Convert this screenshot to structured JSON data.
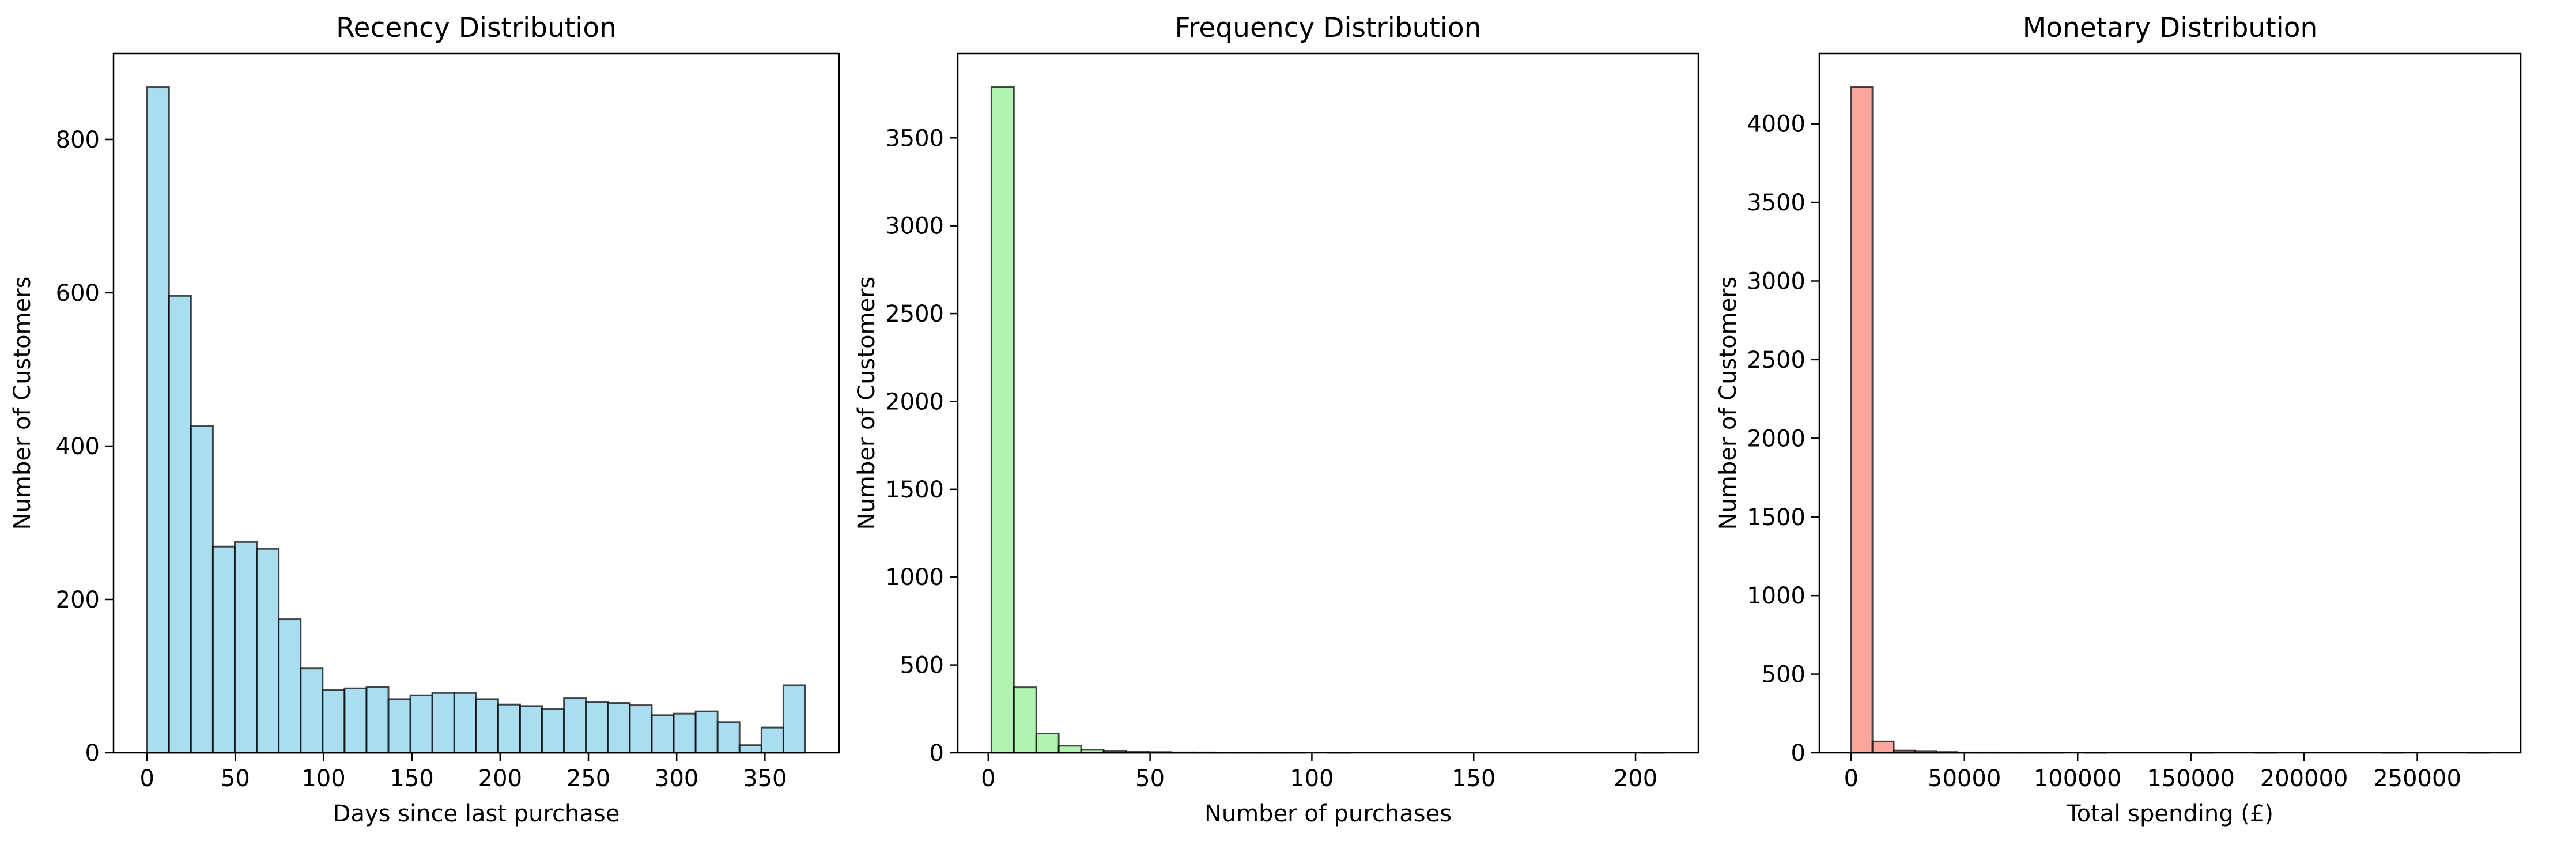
{
  "chart_data": [
    {
      "type": "bar",
      "title": "Recency Distribution",
      "xlabel": "Days since last purchase",
      "ylabel": "Number of Customers",
      "color": "#87ceeb",
      "edge_color": "#000000",
      "bin_start": 0,
      "bin_width": 12.43,
      "values": [
        868,
        596,
        426,
        269,
        275,
        266,
        174,
        110,
        82,
        84,
        86,
        70,
        75,
        78,
        78,
        70,
        63,
        61,
        57,
        71,
        66,
        65,
        62,
        49,
        51,
        54,
        40,
        10,
        33,
        88
      ],
      "xlim": [
        -19,
        392
      ],
      "ylim": [
        0,
        912
      ],
      "xticks": [
        0,
        50,
        100,
        150,
        200,
        250,
        300,
        350
      ],
      "xtick_labels": [
        "0",
        "50",
        "100",
        "150",
        "200",
        "250",
        "300",
        "350"
      ],
      "yticks": [
        0,
        200,
        400,
        600,
        800
      ],
      "ytick_labels": [
        "0",
        "200",
        "400",
        "600",
        "800"
      ]
    },
    {
      "type": "bar",
      "title": "Frequency Distribution",
      "xlabel": "Number of purchases",
      "ylabel": "Number of Customers",
      "color": "#90ee90",
      "edge_color": "#000000",
      "bin_start": 1,
      "bin_width": 6.93,
      "values": [
        3790,
        372,
        110,
        40,
        17,
        9,
        5,
        4,
        2,
        2,
        1,
        1,
        1,
        1,
        0,
        1,
        0,
        0,
        0,
        0,
        0,
        0,
        0,
        0,
        0,
        0,
        0,
        0,
        0,
        1
      ],
      "xlidm": null,
      "xlim": [
        -9.4,
        219.4
      ],
      "ylim": [
        0,
        3980
      ],
      "xticks": [
        0,
        50,
        100,
        150,
        200
      ],
      "xtick_labels": [
        "0",
        "50",
        "100",
        "150",
        "200"
      ],
      "yticks": [
        0,
        500,
        1000,
        1500,
        2000,
        2500,
        3000,
        3500
      ],
      "ytick_labels": [
        "0",
        "500",
        "1000",
        "1500",
        "2000",
        "2500",
        "3000",
        "3500"
      ]
    },
    {
      "type": "bar",
      "title": "Monetary Distribution",
      "xlabel": "Total spending (£)",
      "ylabel": "Number of Customers",
      "color": "#fa8072",
      "edge_color": "#000000",
      "bin_start": 0,
      "bin_width": 9386,
      "values": [
        4234,
        72,
        14,
        8,
        5,
        2,
        2,
        1,
        1,
        1,
        0,
        1,
        0,
        0,
        0,
        0,
        1,
        0,
        0,
        1,
        0,
        0,
        0,
        0,
        0,
        1,
        0,
        0,
        0,
        1
      ],
      "xlim": [
        -14080,
        295670
      ],
      "ylim": [
        0,
        4446
      ],
      "xticks": [
        0,
        50000,
        100000,
        150000,
        200000,
        250000
      ],
      "xtick_labels": [
        "0",
        "50000",
        "100000",
        "150000",
        "200000",
        "250000"
      ],
      "yticks": [
        0,
        500,
        1000,
        1500,
        2000,
        2500,
        3000,
        3500,
        4000
      ],
      "ytick_labels": [
        "0",
        "500",
        "1000",
        "1500",
        "2000",
        "2500",
        "3000",
        "3500",
        "4000"
      ]
    }
  ]
}
